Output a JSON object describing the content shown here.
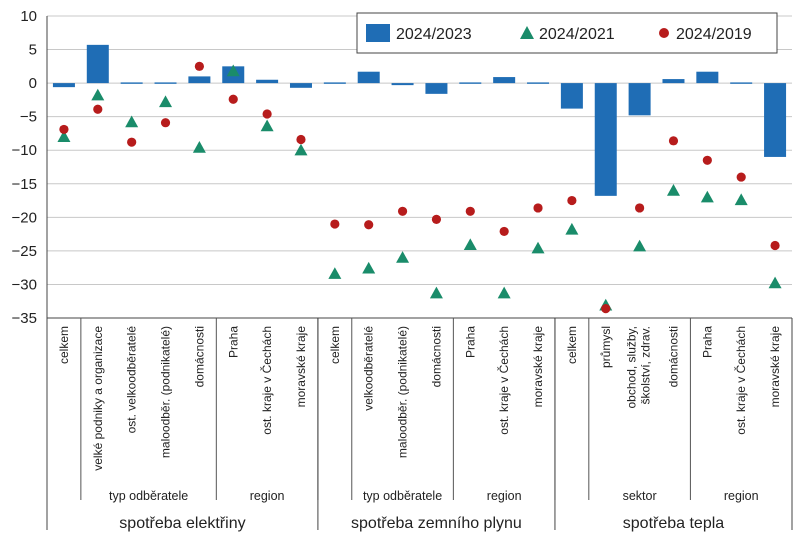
{
  "chart_data": {
    "type": "bar",
    "ylim": [
      -35,
      10
    ],
    "yticks": [
      "10",
      "5",
      "0",
      "−5",
      "−10",
      "−15",
      "−20",
      "−25",
      "−30",
      "−35"
    ],
    "ytick_values": [
      10,
      5,
      0,
      -5,
      -10,
      -15,
      -20,
      -25,
      -30,
      -35
    ],
    "grid": true,
    "legend_position": "top-right",
    "categories": [
      "celkem",
      "velké podniky a organizace",
      "ost. velkoodběratelé",
      "maloodběr. (podnikatelé)",
      "domácnosti",
      "Praha",
      "ost. kraje v Čechách",
      "moravské kraje",
      "celkem",
      "velkoodběratelé",
      "maloodběr. (podnikatelé)",
      "domácnosti",
      "Praha",
      "ost. kraje v Čechách",
      "moravské kraje",
      "celkem",
      "průmysl",
      "obchod, služby, školství, zdrav.",
      "domácnosti",
      "Praha",
      "ost. kraje v Čechách",
      "moravské kraje"
    ],
    "series": [
      {
        "name": "2024/2023",
        "marker": "bar",
        "color": "#1f6db5",
        "values": [
          -0.6,
          5.7,
          0.0,
          0.1,
          1.0,
          2.5,
          0.5,
          -0.7,
          0.0,
          1.7,
          -0.3,
          -1.6,
          0.1,
          0.9,
          0.0,
          -3.8,
          -16.8,
          -4.8,
          0.6,
          1.7,
          0.0,
          -11.0
        ]
      },
      {
        "name": "2024/2021",
        "marker": "triangle",
        "color": "#1a8c6a",
        "values": [
          -8.0,
          -1.8,
          -5.8,
          -2.8,
          -9.6,
          1.8,
          -6.4,
          -10.0,
          -28.4,
          -27.6,
          -26.0,
          -31.3,
          -24.1,
          -31.3,
          -24.6,
          -21.8,
          -33.1,
          -24.3,
          -16.0,
          -17.0,
          -17.4,
          -29.8
        ]
      },
      {
        "name": "2024/2019",
        "marker": "circle",
        "color": "#b71c1c",
        "values": [
          -6.9,
          -3.9,
          -8.8,
          -5.9,
          2.5,
          -2.4,
          -4.6,
          -8.4,
          -21.0,
          -21.1,
          -19.1,
          -20.3,
          -19.1,
          -22.1,
          -18.6,
          -17.5,
          -33.6,
          -18.6,
          -8.6,
          -11.5,
          -14.0,
          -24.2
        ]
      }
    ],
    "subgroups": [
      {
        "label": "typ odběratele",
        "start": 1,
        "end": 4
      },
      {
        "label": "region",
        "start": 5,
        "end": 7
      },
      {
        "label": "typ odběratele",
        "start": 9,
        "end": 11
      },
      {
        "label": "region",
        "start": 12,
        "end": 14
      },
      {
        "label": "sektor",
        "start": 16,
        "end": 18
      },
      {
        "label": "region",
        "start": 19,
        "end": 21
      }
    ],
    "groups": [
      {
        "label": "spotřeba elektřiny",
        "start": 0,
        "end": 7
      },
      {
        "label": "spotřeba zemního plynu",
        "start": 8,
        "end": 14
      },
      {
        "label": "spotřeba tepla",
        "start": 15,
        "end": 21
      }
    ]
  }
}
